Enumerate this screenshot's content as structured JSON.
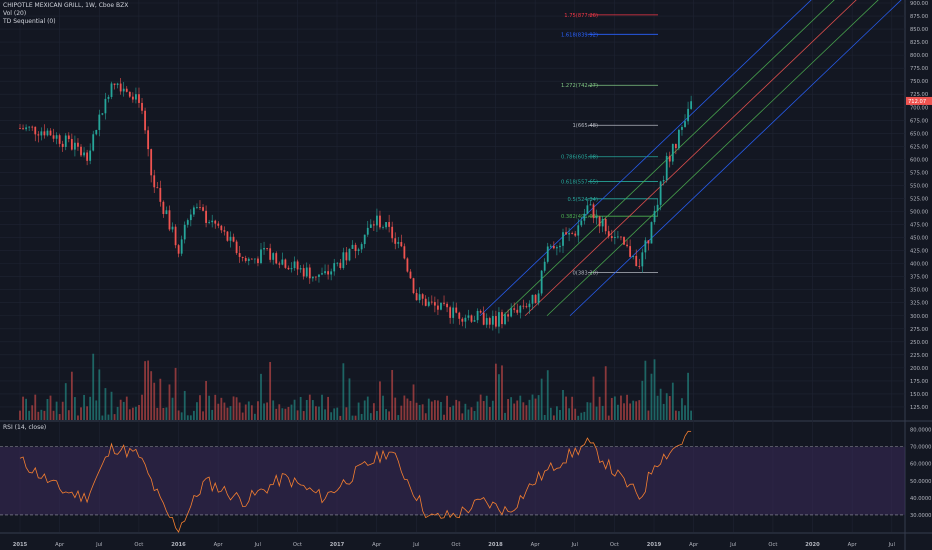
{
  "header": {
    "symbol": "CHIPOTLE MEXICAN GRILL, 1W, Cboe BZX",
    "indicator1": "Vol (20)",
    "indicator2": "TD Sequential (0)"
  },
  "rsi_panel": {
    "label": "RSI (14, close)"
  },
  "colors": {
    "background": "#131722",
    "grid": "#1f2433",
    "up": "#26a69a",
    "down": "#ef5350",
    "rsi_line": "#f57f30",
    "rsi_band": "#3a2a5a",
    "price_tag": "#ef5350"
  },
  "chart_data": [
    {
      "type": "candlestick",
      "ylim": [
        100,
        900
      ],
      "y_ticks": [
        "900.00",
        "875.00",
        "850.00",
        "825.00",
        "800.00",
        "775.00",
        "750.00",
        "725.00",
        "700.00",
        "675.00",
        "650.00",
        "625.00",
        "600.00",
        "575.00",
        "550.00",
        "525.00",
        "500.00",
        "475.00",
        "450.00",
        "425.00",
        "400.00",
        "375.00",
        "350.00",
        "325.00",
        "300.00",
        "275.00",
        "250.00",
        "225.00",
        "200.00",
        "175.00",
        "150.00",
        "125.00"
      ],
      "x_ticks": [
        "2015",
        "Apr",
        "Jul",
        "Oct",
        "2016",
        "Apr",
        "Jul",
        "Oct",
        "2017",
        "Apr",
        "Jul",
        "Oct",
        "2018",
        "Apr",
        "Jul",
        "Oct",
        "2019",
        "Apr",
        "Jul",
        "Oct",
        "2020",
        "Apr",
        "Jul"
      ],
      "last_price": "712.07",
      "price_path": [
        {
          "date": "2015-01",
          "close": 660
        },
        {
          "date": "2015-03",
          "close": 655
        },
        {
          "date": "2015-05",
          "close": 625
        },
        {
          "date": "2015-06",
          "close": 605
        },
        {
          "date": "2015-08",
          "close": 755
        },
        {
          "date": "2015-10",
          "close": 720
        },
        {
          "date": "2015-11",
          "close": 560
        },
        {
          "date": "2016-01",
          "close": 430
        },
        {
          "date": "2016-02",
          "close": 510
        },
        {
          "date": "2016-04",
          "close": 470
        },
        {
          "date": "2016-06",
          "close": 405
        },
        {
          "date": "2016-08",
          "close": 420
        },
        {
          "date": "2016-10",
          "close": 390
        },
        {
          "date": "2016-12",
          "close": 375
        },
        {
          "date": "2017-02",
          "close": 420
        },
        {
          "date": "2017-04",
          "close": 485
        },
        {
          "date": "2017-05",
          "close": 460
        },
        {
          "date": "2017-06",
          "close": 420
        },
        {
          "date": "2017-07",
          "close": 335
        },
        {
          "date": "2017-09",
          "close": 310
        },
        {
          "date": "2017-11",
          "close": 300
        },
        {
          "date": "2018-01",
          "close": 290
        },
        {
          "date": "2018-03",
          "close": 320
        },
        {
          "date": "2018-04",
          "close": 330
        },
        {
          "date": "2018-05",
          "close": 430
        },
        {
          "date": "2018-07",
          "close": 460
        },
        {
          "date": "2018-08",
          "close": 510
        },
        {
          "date": "2018-10",
          "close": 450
        },
        {
          "date": "2018-12",
          "close": 400
        },
        {
          "date": "2019-01",
          "close": 490
        },
        {
          "date": "2019-02",
          "close": 600
        },
        {
          "date": "2019-03",
          "close": 650
        },
        {
          "date": "2019-04",
          "close": 712
        }
      ],
      "fibonacci": [
        {
          "label": "0(383.20)",
          "value": 383.2
        },
        {
          "label": "0.382(491.03)",
          "value": 491.03
        },
        {
          "label": "0.5(524.34)",
          "value": 524.34
        },
        {
          "label": "0.618(557.65)",
          "value": 557.65
        },
        {
          "label": "0.786(605.08)",
          "value": 605.08
        },
        {
          "label": "1(665.48)",
          "value": 665.48
        },
        {
          "label": "1.272(742.27)",
          "value": 742.27
        },
        {
          "label": "1.618(839.92)",
          "value": 839.92
        },
        {
          "label": "1.75(877.26)",
          "value": 877.26
        }
      ]
    },
    {
      "type": "bar",
      "name": "Vol (20)",
      "note": "weekly volume histogram at base of price pane"
    },
    {
      "type": "line",
      "name": "RSI (14, close)",
      "ylim": [
        20,
        85
      ],
      "y_ticks": [
        "80.0000",
        "70.0000",
        "60.0000",
        "50.0000",
        "40.0000",
        "30.0000"
      ],
      "bands": [
        30,
        70
      ],
      "path": [
        {
          "date": "2015-01",
          "value": 62
        },
        {
          "date": "2015-04",
          "value": 45
        },
        {
          "date": "2015-06",
          "value": 40
        },
        {
          "date": "2015-08",
          "value": 70
        },
        {
          "date": "2015-10",
          "value": 65
        },
        {
          "date": "2015-12",
          "value": 32
        },
        {
          "date": "2016-01",
          "value": 22
        },
        {
          "date": "2016-03",
          "value": 50
        },
        {
          "date": "2016-06",
          "value": 38
        },
        {
          "date": "2016-09",
          "value": 52
        },
        {
          "date": "2016-12",
          "value": 40
        },
        {
          "date": "2017-03",
          "value": 58
        },
        {
          "date": "2017-05",
          "value": 68
        },
        {
          "date": "2017-06",
          "value": 55
        },
        {
          "date": "2017-08",
          "value": 28
        },
        {
          "date": "2017-10",
          "value": 30
        },
        {
          "date": "2017-12",
          "value": 38
        },
        {
          "date": "2018-02",
          "value": 32
        },
        {
          "date": "2018-04",
          "value": 50
        },
        {
          "date": "2018-06",
          "value": 62
        },
        {
          "date": "2018-08",
          "value": 72
        },
        {
          "date": "2018-10",
          "value": 55
        },
        {
          "date": "2018-12",
          "value": 40
        },
        {
          "date": "2019-01",
          "value": 60
        },
        {
          "date": "2019-03",
          "value": 72
        },
        {
          "date": "2019-04",
          "value": 81
        }
      ]
    }
  ]
}
